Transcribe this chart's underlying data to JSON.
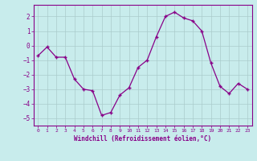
{
  "x": [
    0,
    1,
    2,
    3,
    4,
    5,
    6,
    7,
    8,
    9,
    10,
    11,
    12,
    13,
    14,
    15,
    16,
    17,
    18,
    19,
    20,
    21,
    22,
    23
  ],
  "y": [
    -0.7,
    -0.1,
    -0.8,
    -0.8,
    -2.3,
    -3.0,
    -3.1,
    -4.8,
    -4.6,
    -3.4,
    -2.9,
    -1.5,
    -1.0,
    0.6,
    2.0,
    2.3,
    1.9,
    1.7,
    1.0,
    -1.2,
    -2.8,
    -3.3,
    -2.6,
    -3.0
  ],
  "xlim": [
    -0.5,
    23.5
  ],
  "ylim": [
    -5.5,
    2.8
  ],
  "yticks": [
    -5,
    -4,
    -3,
    -2,
    -1,
    0,
    1,
    2
  ],
  "xticks": [
    0,
    1,
    2,
    3,
    4,
    5,
    6,
    7,
    8,
    9,
    10,
    11,
    12,
    13,
    14,
    15,
    16,
    17,
    18,
    19,
    20,
    21,
    22,
    23
  ],
  "xlabel": "Windchill (Refroidissement éolien,°C)",
  "line_color": "#880088",
  "marker": "+",
  "bg_color": "#c8ecec",
  "grid_color": "#aacccc",
  "tick_color": "#880088",
  "label_color": "#880088",
  "axis_color": "#880088"
}
